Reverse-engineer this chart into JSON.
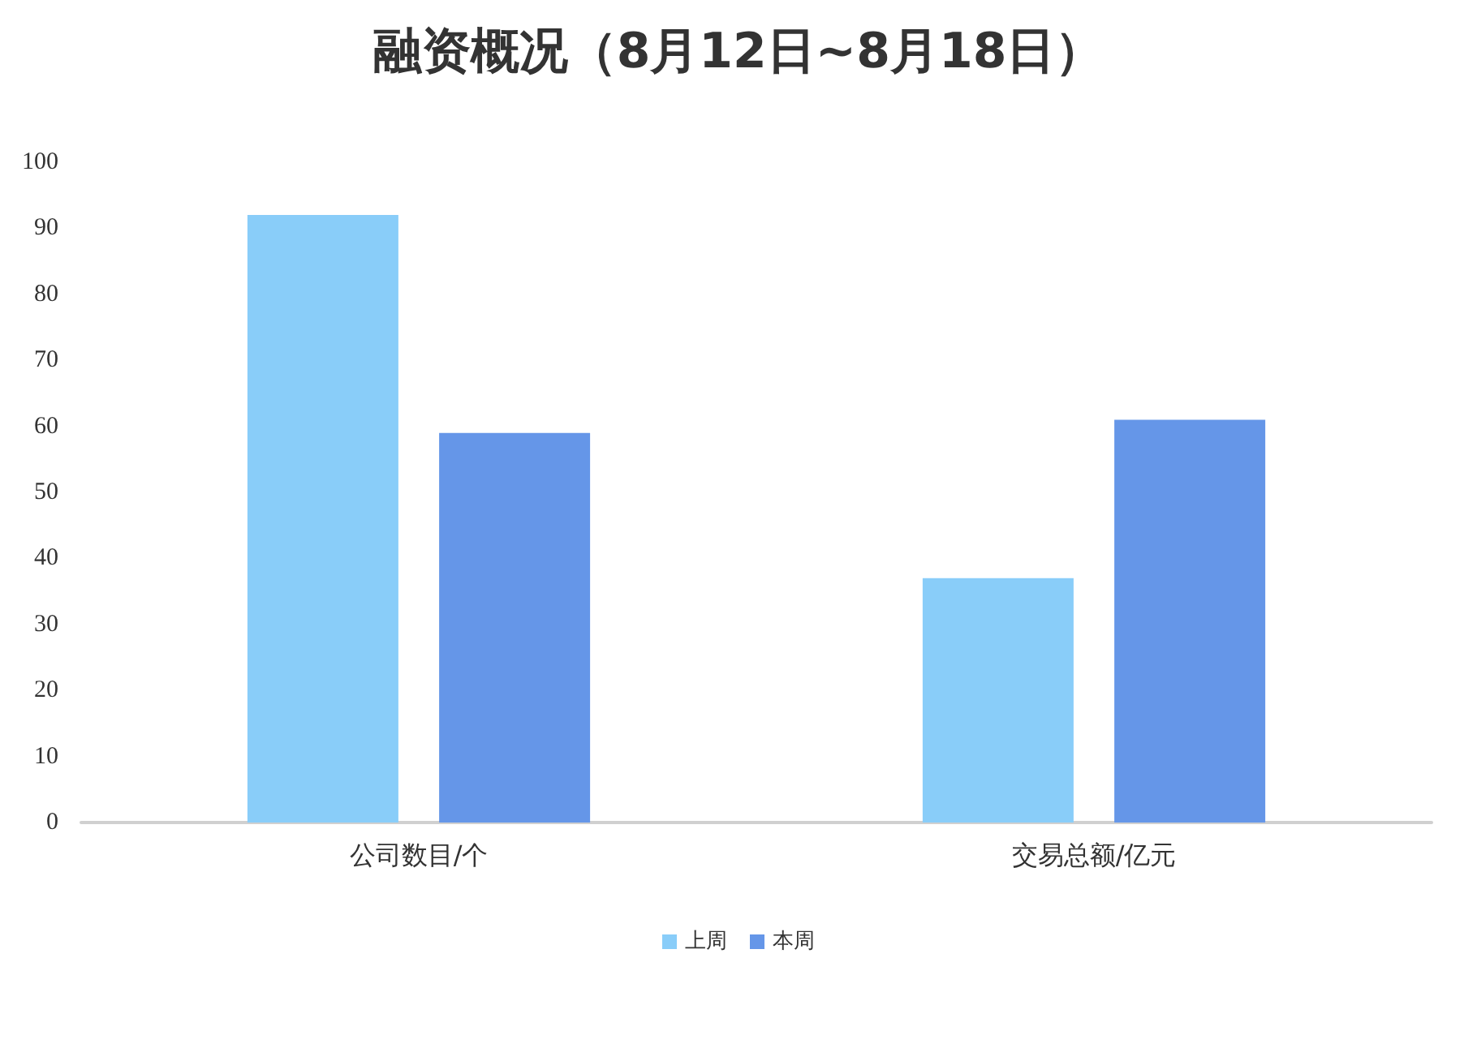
{
  "chart_data": {
    "type": "bar",
    "title": "融资概况（8月12日~8月18日）",
    "categories": [
      "公司数目/个",
      "交易总额/亿元"
    ],
    "series": [
      {
        "name": "上周",
        "color": "#89cdf9",
        "values": [
          92,
          37
        ]
      },
      {
        "name": "本周",
        "color": "#6596e8",
        "values": [
          59,
          61
        ]
      }
    ],
    "ylim": [
      0,
      100
    ],
    "yticks": [
      0,
      10,
      20,
      30,
      40,
      50,
      60,
      70,
      80,
      90,
      100
    ],
    "grid": false,
    "legend": "bottom"
  }
}
